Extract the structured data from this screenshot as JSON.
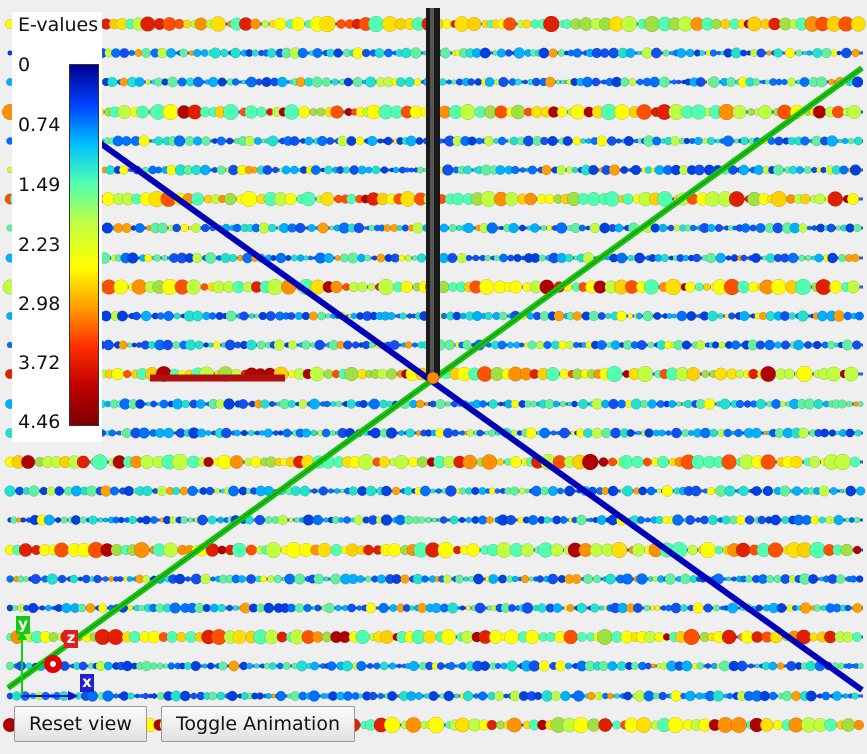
{
  "legend": {
    "title": "E-values",
    "ticks": [
      "0",
      "0.74",
      "1.49",
      "2.23",
      "2.98",
      "3.72",
      "4.46"
    ],
    "colormap": [
      "#00008f",
      "#0040ff",
      "#00c0ff",
      "#50ffb0",
      "#c0ff40",
      "#ffff00",
      "#ffa000",
      "#ff3000",
      "#c00000",
      "#800000"
    ]
  },
  "axes_gizmo": {
    "x_label": "x",
    "y_label": "y",
    "z_label": "z"
  },
  "buttons": {
    "reset": "Reset view",
    "toggle": "Toggle Animation"
  },
  "scene_colors": {
    "diagonal_blue": "#0000b8",
    "diagonal_green": "#10c810",
    "vertical_black": "#1a1a1a",
    "background": "#efefef"
  },
  "icons": {
    "x_axis": "x-axis-arrow-icon",
    "y_axis": "y-axis-arrow-icon",
    "z_axis": "z-axis-dot-icon"
  }
}
